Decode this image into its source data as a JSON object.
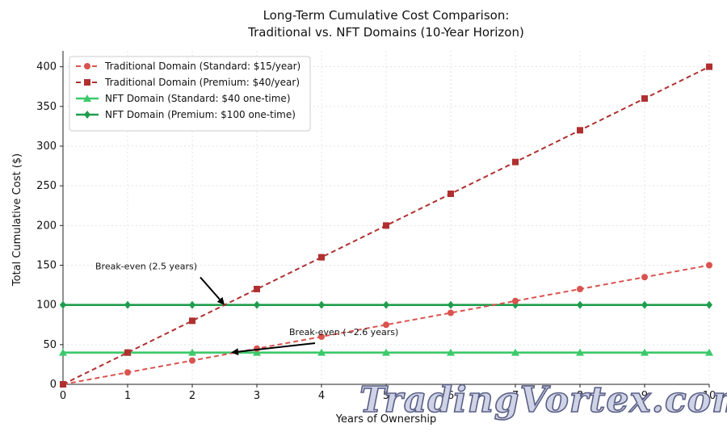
{
  "chart_data": {
    "type": "line",
    "title": [
      "Long-Term Cumulative Cost Comparison:",
      "Traditional vs. NFT Domains (10-Year Horizon)"
    ],
    "xlabel": "Years of Ownership",
    "ylabel": "Total Cumulative Cost ($)",
    "xlim": [
      0,
      10
    ],
    "ylim": [
      0,
      420
    ],
    "xticks": [
      "0",
      "1",
      "2",
      "3",
      "4",
      "5",
      "6",
      "7",
      "8",
      "9",
      "10"
    ],
    "yticks": [
      "0",
      "50",
      "100",
      "150",
      "200",
      "250",
      "300",
      "350",
      "400"
    ],
    "grid": true,
    "legend_position": "upper-left",
    "x": [
      0,
      1,
      2,
      3,
      4,
      5,
      6,
      7,
      8,
      9,
      10
    ],
    "series": [
      {
        "name": "Traditional Domain (Standard: $15/year)",
        "values": [
          0,
          15,
          30,
          45,
          60,
          75,
          90,
          105,
          120,
          135,
          150
        ],
        "color": "#d9534f",
        "marker": "circle",
        "line_style": "dashed"
      },
      {
        "name": "Traditional Domain (Premium: $40/year)",
        "values": [
          0,
          40,
          80,
          120,
          160,
          200,
          240,
          280,
          320,
          360,
          400
        ],
        "color": "#b03030",
        "marker": "square",
        "line_style": "dashed"
      },
      {
        "name": "NFT Domain (Standard: $40 one-time)",
        "values": [
          40,
          40,
          40,
          40,
          40,
          40,
          40,
          40,
          40,
          40,
          40
        ],
        "color": "#3cc96a",
        "marker": "triangle",
        "line_style": "solid"
      },
      {
        "name": "NFT Domain (Premium: $100 one-time)",
        "values": [
          100,
          100,
          100,
          100,
          100,
          100,
          100,
          100,
          100,
          100,
          100
        ],
        "color": "#1f9d4d",
        "marker": "diamond",
        "line_style": "solid"
      }
    ],
    "annotations": [
      {
        "text": "Break-even (2.5 years)",
        "point": [
          2.5,
          100
        ],
        "text_anchor": [
          1.0,
          145
        ]
      },
      {
        "text": "Break-even (~2.6 years)",
        "point": [
          2.6,
          40
        ],
        "text_anchor": [
          4.0,
          62
        ]
      }
    ]
  },
  "watermark": "TradingVortex.com"
}
